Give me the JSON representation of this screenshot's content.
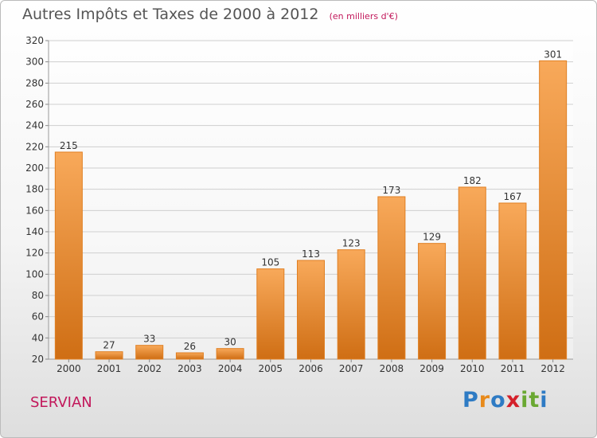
{
  "header": {
    "title": "Autres Impôts et Taxes de 2000 à 2012",
    "unit": "(en milliers d'€)"
  },
  "footer": {
    "commune": "SERVIAN",
    "logo": {
      "text": "Proxiti",
      "colors": [
        "#2e7bc4",
        "#e88a1a",
        "#2e7bc4",
        "#d4202a",
        "#6aa832",
        "#6aa832",
        "#2e7bc4"
      ]
    }
  },
  "colors": {
    "bar_light": "#f8a95a",
    "bar_dark": "#cf6e14",
    "grid": "#cfcfcf",
    "axis_text": "#333333",
    "commune": "#c2185b"
  },
  "chart_data": {
    "type": "bar",
    "title": "Autres Impôts et Taxes de 2000 à 2012",
    "subtitle": "(en milliers d'€)",
    "xlabel": "",
    "ylabel": "",
    "categories": [
      "2000",
      "2001",
      "2002",
      "2003",
      "2004",
      "2005",
      "2006",
      "2007",
      "2008",
      "2009",
      "2010",
      "2011",
      "2012"
    ],
    "values": [
      215,
      27,
      33,
      26,
      30,
      105,
      113,
      123,
      173,
      129,
      182,
      167,
      301
    ],
    "ylim": [
      20,
      320
    ],
    "yticks": [
      20,
      40,
      60,
      80,
      100,
      120,
      140,
      160,
      180,
      200,
      220,
      240,
      260,
      280,
      300,
      320
    ],
    "grid": true,
    "data_labels": true,
    "legend": "none"
  }
}
